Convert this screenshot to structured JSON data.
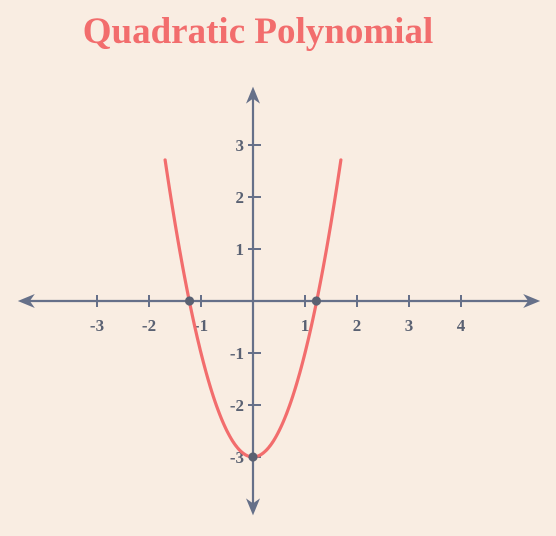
{
  "chart_data": {
    "type": "line",
    "title": "Quadratic Polynomial",
    "xlabel": "",
    "ylabel": "",
    "x_ticks": [
      -3,
      -2,
      -1,
      1,
      2,
      3,
      4
    ],
    "y_ticks": [
      3,
      2,
      1,
      -1,
      -2,
      -3
    ],
    "x_tick_labels": [
      "-3",
      "-2",
      "-1",
      "1",
      "2",
      "3",
      "4"
    ],
    "y_tick_labels": [
      "3",
      "2",
      "1",
      "-1",
      "-2",
      "-3"
    ],
    "xlim": [
      -4.6,
      5.6
    ],
    "ylim": [
      -4.2,
      4.2
    ],
    "grid": false,
    "series": [
      {
        "function": "2x^2 - 3",
        "coefficients": {
          "a": 2,
          "b": 0,
          "c": -3
        },
        "x_range": [
          -1.69,
          1.69
        ],
        "color": "#f26d6d"
      }
    ],
    "points": [
      {
        "x": -1.22,
        "y": 0
      },
      {
        "x": 1.22,
        "y": 0
      },
      {
        "x": 0,
        "y": -3
      }
    ],
    "axis_color": "#667089",
    "point_color": "#5a6172"
  }
}
